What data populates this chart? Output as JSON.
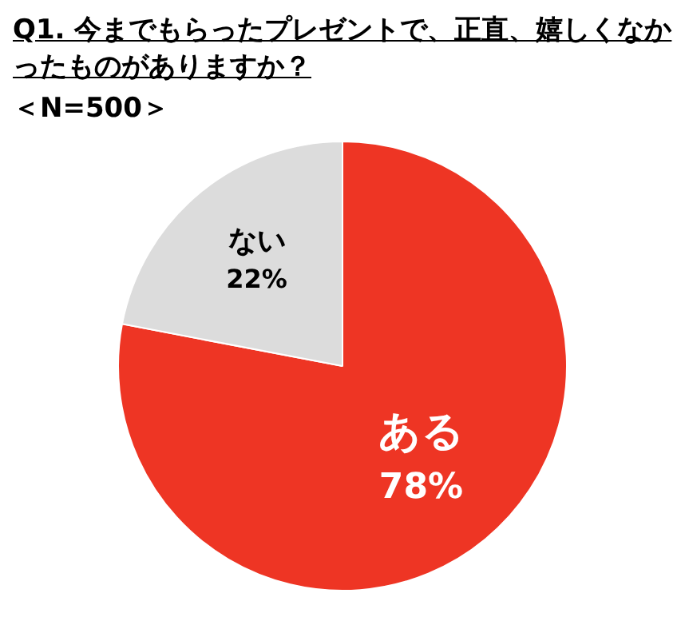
{
  "chart_data": {
    "type": "pie",
    "title": "Q1. 今までもらったプレゼントで、正直、嬉しくなかったものがありますか？",
    "subtitle": "＜N=500＞",
    "categories": [
      "ある",
      "ない"
    ],
    "values": [
      78,
      22
    ],
    "value_labels": [
      "78%",
      "22%"
    ],
    "colors": [
      "#ee3524",
      "#dcdcdc"
    ],
    "legend": false
  }
}
